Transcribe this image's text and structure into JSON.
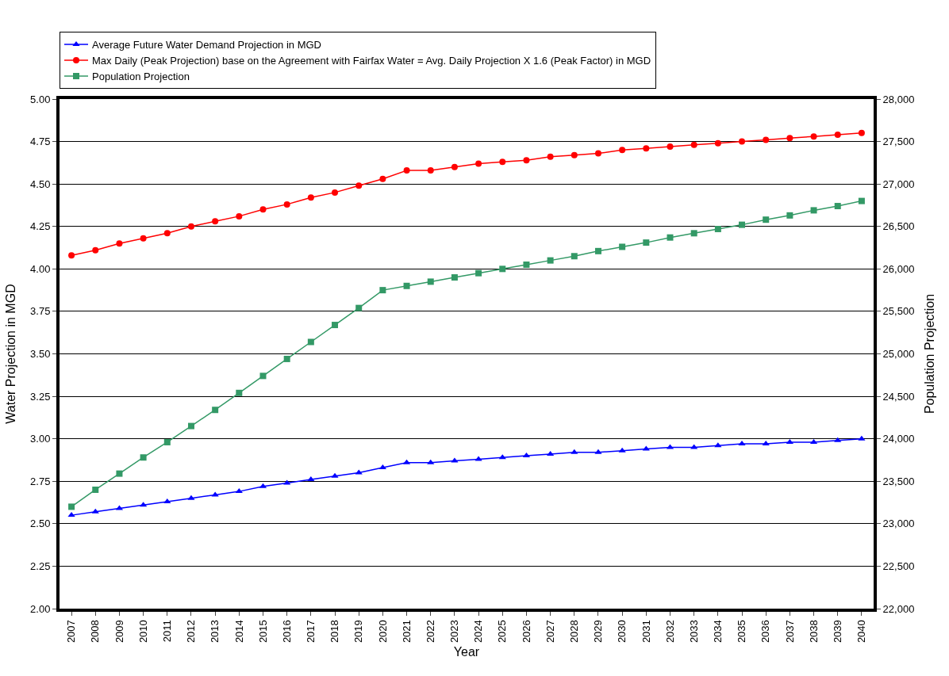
{
  "chart_data": {
    "type": "line",
    "xlabel": "Year",
    "ylabel": "Water Projection in MGD",
    "y2label": "Population Projection",
    "categories": [
      "2007",
      "2008",
      "2009",
      "2010",
      "2011",
      "2012",
      "2013",
      "2014",
      "2015",
      "2016",
      "2017",
      "2018",
      "2019",
      "2020",
      "2021",
      "2022",
      "2023",
      "2024",
      "2025",
      "2026",
      "2027",
      "2028",
      "2029",
      "2030",
      "2031",
      "2032",
      "2033",
      "2034",
      "2035",
      "2036",
      "2037",
      "2038",
      "2039",
      "2040"
    ],
    "ylim": [
      2.0,
      5.0
    ],
    "yticks": [
      {
        "value": 2.0,
        "label": "2.00"
      },
      {
        "value": 2.25,
        "label": "2.25"
      },
      {
        "value": 2.5,
        "label": "2.50"
      },
      {
        "value": 2.75,
        "label": "2.75"
      },
      {
        "value": 3.0,
        "label": "3.00"
      },
      {
        "value": 3.25,
        "label": "3.25"
      },
      {
        "value": 3.5,
        "label": "3.50"
      },
      {
        "value": 3.75,
        "label": "3.75"
      },
      {
        "value": 4.0,
        "label": "4.00"
      },
      {
        "value": 4.25,
        "label": "4.25"
      },
      {
        "value": 4.5,
        "label": "4.50"
      },
      {
        "value": 4.75,
        "label": "4.75"
      },
      {
        "value": 5.0,
        "label": "5.00"
      }
    ],
    "y2lim": [
      22000,
      28000
    ],
    "y2ticks": [
      {
        "value": 22000,
        "label": "22,000"
      },
      {
        "value": 22500,
        "label": "22,500"
      },
      {
        "value": 23000,
        "label": "23,000"
      },
      {
        "value": 23500,
        "label": "23,500"
      },
      {
        "value": 24000,
        "label": "24,000"
      },
      {
        "value": 24500,
        "label": "24,500"
      },
      {
        "value": 25000,
        "label": "25,000"
      },
      {
        "value": 25500,
        "label": "25,500"
      },
      {
        "value": 26000,
        "label": "26,000"
      },
      {
        "value": 26500,
        "label": "26,500"
      },
      {
        "value": 27000,
        "label": "27,000"
      },
      {
        "value": 27500,
        "label": "27,500"
      },
      {
        "value": 28000,
        "label": "28,000"
      }
    ],
    "grid": "y",
    "legend": "top left",
    "series": [
      {
        "name": "Average Future Water Demand Projection in MGD",
        "color": "#0000ff",
        "marker": "triangle",
        "values": [
          2.55,
          2.57,
          2.59,
          2.61,
          2.63,
          2.65,
          2.67,
          2.69,
          2.72,
          2.74,
          2.76,
          2.78,
          2.8,
          2.83,
          2.86,
          2.86,
          2.87,
          2.88,
          2.89,
          2.9,
          2.91,
          2.92,
          2.92,
          2.93,
          2.94,
          2.95,
          2.95,
          2.96,
          2.97,
          2.97,
          2.98,
          2.98,
          2.99,
          3.0
        ]
      },
      {
        "name": "Max Daily (Peak Projection) base on the Agreement with Fairfax Water = Avg. Daily Projection X 1.6 (Peak Factor) in MGD",
        "color": "#ff0000",
        "marker": "circle",
        "values": [
          4.08,
          4.11,
          4.15,
          4.18,
          4.21,
          4.25,
          4.28,
          4.31,
          4.35,
          4.38,
          4.42,
          4.45,
          4.49,
          4.53,
          4.58,
          4.58,
          4.6,
          4.62,
          4.63,
          4.64,
          4.66,
          4.67,
          4.68,
          4.7,
          4.71,
          4.72,
          4.73,
          4.74,
          4.75,
          4.76,
          4.77,
          4.78,
          4.79,
          4.8
        ]
      },
      {
        "name": "Population Projection",
        "color": "#339966",
        "marker": "square",
        "axis": "y2",
        "values": [
          23200,
          23400,
          23590,
          23780,
          23960,
          24150,
          24340,
          24540,
          24740,
          24940,
          25140,
          25340,
          25540,
          25750,
          25800,
          25850,
          25900,
          25950,
          26000,
          26050,
          26100,
          26150,
          26210,
          26260,
          26310,
          26370,
          26420,
          26470,
          26520,
          26580,
          26630,
          26690,
          26740,
          26800
        ]
      }
    ]
  }
}
